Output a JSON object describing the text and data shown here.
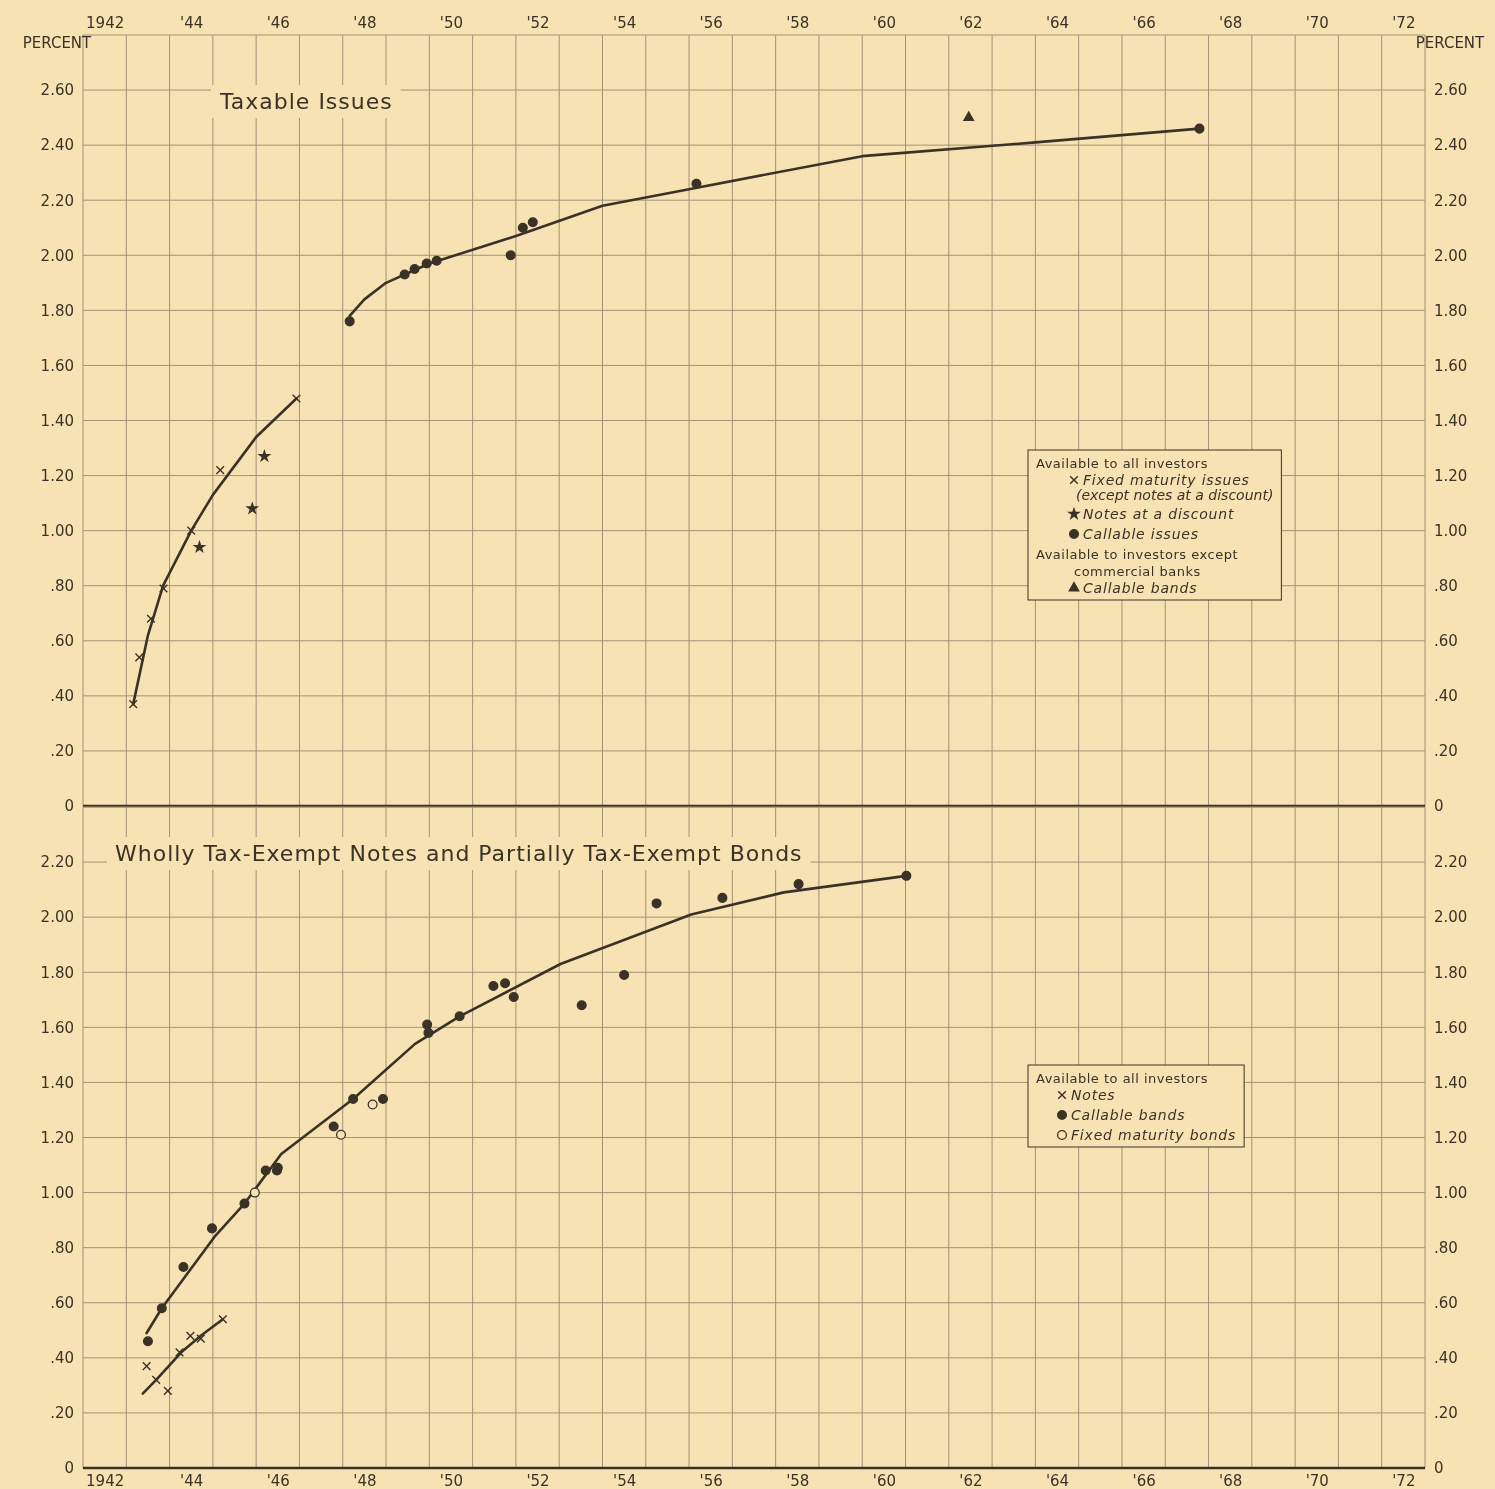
{
  "chart_data": [
    {
      "type": "scatter",
      "title": "Taxable Issues",
      "ylabel": "PERCENT",
      "y2label": "PERCENT",
      "legend_title": "Available to all investors",
      "annotations": [
        "Available to investors except commercial banks"
      ],
      "grid": true,
      "legend": "right",
      "xlim": [
        1941.5,
        1972.5
      ],
      "xticks": [
        {
          "value": 1942,
          "label": "1942"
        },
        {
          "value": 1944,
          "label": "'44"
        },
        {
          "value": 1946,
          "label": "'46"
        },
        {
          "value": 1948,
          "label": "'48"
        },
        {
          "value": 1950,
          "label": "'50"
        },
        {
          "value": 1952,
          "label": "'52"
        },
        {
          "value": 1954,
          "label": "'54"
        },
        {
          "value": 1956,
          "label": "'56"
        },
        {
          "value": 1958,
          "label": "'58"
        },
        {
          "value": 1960,
          "label": "'60"
        },
        {
          "value": 1962,
          "label": "'62"
        },
        {
          "value": 1964,
          "label": "'64"
        },
        {
          "value": 1966,
          "label": "'66"
        },
        {
          "value": 1968,
          "label": "'68"
        },
        {
          "value": 1970,
          "label": "'70"
        },
        {
          "value": 1972,
          "label": "'72"
        },
        {
          "value": 1942.5,
          "label": null
        },
        {
          "value": 1943.5,
          "label": null
        },
        {
          "value": 1944.5,
          "label": null
        },
        {
          "value": 1945.5,
          "label": null
        },
        {
          "value": 1946.5,
          "label": null
        },
        {
          "value": 1947.5,
          "label": null
        },
        {
          "value": 1948.5,
          "label": null
        },
        {
          "value": 1949.5,
          "label": null
        },
        {
          "value": 1950.5,
          "label": null
        },
        {
          "value": 1951.5,
          "label": null
        },
        {
          "value": 1952.5,
          "label": null
        },
        {
          "value": 1953.5,
          "label": null
        },
        {
          "value": 1954.5,
          "label": null
        },
        {
          "value": 1955.5,
          "label": null
        },
        {
          "value": 1956.5,
          "label": null
        },
        {
          "value": 1957.5,
          "label": null
        },
        {
          "value": 1958.5,
          "label": null
        },
        {
          "value": 1959.5,
          "label": null
        },
        {
          "value": 1960.5,
          "label": null
        },
        {
          "value": 1961.5,
          "label": null
        },
        {
          "value": 1962.5,
          "label": null
        },
        {
          "value": 1963.5,
          "label": null
        },
        {
          "value": 1964.5,
          "label": null
        },
        {
          "value": 1965.5,
          "label": null
        },
        {
          "value": 1966.5,
          "label": null
        },
        {
          "value": 1967.5,
          "label": null
        },
        {
          "value": 1968.5,
          "label": null
        },
        {
          "value": 1969.5,
          "label": null
        },
        {
          "value": 1970.5,
          "label": null
        },
        {
          "value": 1971.5,
          "label": null
        }
      ],
      "ylim": [
        0,
        2.8
      ],
      "yticks": [
        0,
        {
          "value": 0.2,
          "label": ".20"
        },
        {
          "value": 0.4,
          "label": ".40"
        },
        {
          "value": 0.6,
          "label": ".60"
        },
        {
          "value": 0.8,
          "label": ".80"
        },
        {
          "value": 1.0,
          "label": "1.00"
        },
        {
          "value": 1.2,
          "label": "1.20"
        },
        {
          "value": 1.4,
          "label": "1.40"
        },
        {
          "value": 1.6,
          "label": "1.60"
        },
        {
          "value": 1.8,
          "label": "1.80"
        },
        {
          "value": 2.0,
          "label": "2.00"
        },
        {
          "value": 2.2,
          "label": "2.20"
        },
        {
          "value": 2.4,
          "label": "2.40"
        },
        {
          "value": 2.6,
          "label": "2.60"
        }
      ],
      "y2lim": [
        0,
        2.8
      ],
      "y2ticks": [
        0,
        {
          "value": 0.2,
          "label": ".20"
        },
        {
          "value": 0.4,
          "label": ".40"
        },
        {
          "value": 0.6,
          "label": ".60"
        },
        {
          "value": 0.8,
          "label": ".80"
        },
        {
          "value": 1.0,
          "label": "1.00"
        },
        {
          "value": 1.2,
          "label": "1.20"
        },
        {
          "value": 1.4,
          "label": "1.40"
        },
        {
          "value": 1.6,
          "label": "1.60"
        },
        {
          "value": 1.8,
          "label": "1.80"
        },
        {
          "value": 2.0,
          "label": "2.00"
        },
        {
          "value": 2.2,
          "label": "2.20"
        },
        {
          "value": 2.4,
          "label": "2.40"
        },
        {
          "value": 2.6,
          "label": "2.60"
        }
      ],
      "series": [
        {
          "type": "line",
          "color": "#3a3226",
          "x": [
            1942.66,
            1943,
            1943.35,
            1944,
            1944.5,
            1945.5,
            1946.43
          ],
          "values": [
            0.37,
            0.62,
            0.8,
            1.0,
            1.13,
            1.34,
            1.48
          ]
        },
        {
          "type": "line",
          "color": "#3a3226",
          "x": [
            1947.66,
            1948,
            1948.5,
            1949.5,
            1951.5,
            1953.5,
            1955.5,
            1959.5,
            1963.5,
            1967.29
          ],
          "values": [
            1.78,
            1.84,
            1.9,
            1.97,
            2.07,
            2.18,
            2.24,
            2.36,
            2.41,
            2.46
          ]
        },
        {
          "name": "Fixed maturity issues (except notes at a discount)",
          "color": "#3a3226",
          "marker": "cross",
          "x": [
            1942.66,
            1942.8,
            1943.07,
            1943.36,
            1944,
            1944.67,
            1946.43
          ],
          "values": [
            0.37,
            0.54,
            0.68,
            0.79,
            1.0,
            1.22,
            1.48
          ]
        },
        {
          "name": "Notes at a discount",
          "color": "#3a3226",
          "marker": "star",
          "x": [
            1944.19,
            1945.41,
            1945.69
          ],
          "values": [
            0.94,
            1.08,
            1.27
          ]
        },
        {
          "name": "Callable issues",
          "color": "#3a3226",
          "marker": "circle",
          "x": [
            1947.66,
            1948.93,
            1949.16,
            1949.44,
            1949.67,
            1951.38,
            1951.66,
            1951.89,
            1955.67,
            1967.29
          ],
          "values": [
            1.76,
            1.93,
            1.95,
            1.97,
            1.98,
            2.0,
            2.1,
            2.12,
            2.26,
            2.46
          ]
        },
        {
          "name": "Callable bands",
          "color": "#3a3226",
          "marker": "triangle",
          "x": [
            1961.96
          ],
          "values": [
            2.5
          ]
        }
      ]
    },
    {
      "type": "scatter",
      "title": "Wholly Tax-Exempt Notes and Partially Tax-Exempt Bonds",
      "legend_title": "Available to all investors",
      "grid": true,
      "legend": "right",
      "xlim": [
        1941.5,
        1972.5
      ],
      "xticks": [
        {
          "value": 1942,
          "label": "1942"
        },
        {
          "value": 1944,
          "label": "'44"
        },
        {
          "value": 1946,
          "label": "'46"
        },
        {
          "value": 1948,
          "label": "'48"
        },
        {
          "value": 1950,
          "label": "'50"
        },
        {
          "value": 1952,
          "label": "'52"
        },
        {
          "value": 1954,
          "label": "'54"
        },
        {
          "value": 1956,
          "label": "'56"
        },
        {
          "value": 1958,
          "label": "'58"
        },
        {
          "value": 1960,
          "label": "'60"
        },
        {
          "value": 1962,
          "label": "'62"
        },
        {
          "value": 1964,
          "label": "'64"
        },
        {
          "value": 1966,
          "label": "'66"
        },
        {
          "value": 1968,
          "label": "'68"
        },
        {
          "value": 1970,
          "label": "'70"
        },
        {
          "value": 1972,
          "label": "'72"
        },
        {
          "value": 1942.5,
          "label": null
        },
        {
          "value": 1943.5,
          "label": null
        },
        {
          "value": 1944.5,
          "label": null
        },
        {
          "value": 1945.5,
          "label": null
        },
        {
          "value": 1946.5,
          "label": null
        },
        {
          "value": 1947.5,
          "label": null
        },
        {
          "value": 1948.5,
          "label": null
        },
        {
          "value": 1949.5,
          "label": null
        },
        {
          "value": 1950.5,
          "label": null
        },
        {
          "value": 1951.5,
          "label": null
        },
        {
          "value": 1952.5,
          "label": null
        },
        {
          "value": 1953.5,
          "label": null
        },
        {
          "value": 1954.5,
          "label": null
        },
        {
          "value": 1955.5,
          "label": null
        },
        {
          "value": 1956.5,
          "label": null
        },
        {
          "value": 1957.5,
          "label": null
        },
        {
          "value": 1958.5,
          "label": null
        },
        {
          "value": 1959.5,
          "label": null
        },
        {
          "value": 1960.5,
          "label": null
        },
        {
          "value": 1961.5,
          "label": null
        },
        {
          "value": 1962.5,
          "label": null
        },
        {
          "value": 1963.5,
          "label": null
        },
        {
          "value": 1964.5,
          "label": null
        },
        {
          "value": 1965.5,
          "label": null
        },
        {
          "value": 1966.5,
          "label": null
        },
        {
          "value": 1967.5,
          "label": null
        },
        {
          "value": 1968.5,
          "label": null
        },
        {
          "value": 1969.5,
          "label": null
        },
        {
          "value": 1970.5,
          "label": null
        },
        {
          "value": 1971.5,
          "label": null
        }
      ],
      "ylim": [
        0,
        2.4
      ],
      "yticks": [
        0,
        {
          "value": 0.2,
          "label": ".20"
        },
        {
          "value": 0.4,
          "label": ".40"
        },
        {
          "value": 0.6,
          "label": ".60"
        },
        {
          "value": 0.8,
          "label": ".80"
        },
        {
          "value": 1.0,
          "label": "1.00"
        },
        {
          "value": 1.2,
          "label": "1.20"
        },
        {
          "value": 1.4,
          "label": "1.40"
        },
        {
          "value": 1.6,
          "label": "1.60"
        },
        {
          "value": 1.8,
          "label": "1.80"
        },
        {
          "value": 2.0,
          "label": "2.00"
        },
        {
          "value": 2.2,
          "label": "2.20"
        }
      ],
      "y2lim": [
        0,
        2.4
      ],
      "y2ticks": [
        0,
        {
          "value": 0.2,
          "label": ".20"
        },
        {
          "value": 0.4,
          "label": ".40"
        },
        {
          "value": 0.6,
          "label": ".60"
        },
        {
          "value": 0.8,
          "label": ".80"
        },
        {
          "value": 1.0,
          "label": "1.00"
        },
        {
          "value": 1.2,
          "label": "1.20"
        },
        {
          "value": 1.4,
          "label": "1.40"
        },
        {
          "value": 1.6,
          "label": "1.60"
        },
        {
          "value": 1.8,
          "label": "1.80"
        },
        {
          "value": 2.0,
          "label": "2.00"
        },
        {
          "value": 2.2,
          "label": "2.20"
        }
      ],
      "series": [
        {
          "type": "line",
          "color": "#3a3226",
          "x": [
            1942.97,
            1943.32,
            1944.54,
            1945.23,
            1946.08,
            1947.74,
            1949.17,
            1950.2,
            1952.53,
            1955.55,
            1957.69,
            1960.52
          ],
          "values": [
            0.49,
            0.58,
            0.84,
            0.96,
            1.14,
            1.34,
            1.54,
            1.64,
            1.83,
            2.01,
            2.09,
            2.15
          ]
        },
        {
          "type": "line",
          "color": "#3a3226",
          "x": [
            1942.88,
            1943.19,
            1943.77,
            1944.22,
            1944.73
          ],
          "values": [
            0.27,
            0.32,
            0.42,
            0.48,
            0.54
          ]
        },
        {
          "name": "Notes",
          "color": "#3a3226",
          "marker": "cross",
          "x": [
            1942.97,
            1943.19,
            1943.46,
            1943.73,
            1943.98,
            1944.22,
            1944.73
          ],
          "values": [
            0.37,
            0.32,
            0.28,
            0.42,
            0.48,
            0.47,
            0.54
          ]
        },
        {
          "name": "Callable bands",
          "color": "#3a3226",
          "marker": "circle",
          "x": [
            1943,
            1943.32,
            1943.82,
            1944.48,
            1945.23,
            1945.72,
            1945.98,
            1946,
            1947.29,
            1947.74,
            1948.43,
            1949.45,
            1949.48,
            1950.2,
            1950.98,
            1951.25,
            1951.45,
            1953.02,
            1954,
            1954.75,
            1956.27,
            1958.03,
            1960.52
          ],
          "values": [
            0.46,
            0.58,
            0.73,
            0.87,
            0.96,
            1.08,
            1.08,
            1.09,
            1.24,
            1.34,
            1.34,
            1.61,
            1.58,
            1.64,
            1.75,
            1.76,
            1.71,
            1.68,
            1.79,
            2.05,
            2.07,
            2.12,
            2.15
          ]
        },
        {
          "name": "Fixed maturity bonds",
          "color": "#f6e2b3",
          "marker": "circle",
          "x": [
            1945.47,
            1947.46,
            1948.19
          ],
          "values": [
            1.0,
            1.21,
            1.32
          ]
        }
      ]
    }
  ]
}
